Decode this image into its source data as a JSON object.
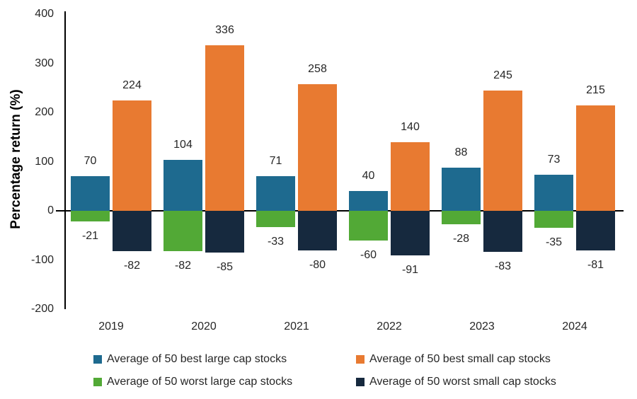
{
  "chart_data": {
    "type": "bar",
    "title": "",
    "xlabel": "",
    "ylabel": "Percentage return (%)",
    "categories": [
      "2019",
      "2020",
      "2021",
      "2022",
      "2023",
      "2024"
    ],
    "yticks": [
      400,
      300,
      200,
      100,
      0,
      -100,
      -200
    ],
    "ylim": [
      -200,
      400
    ],
    "grid": false,
    "legend_position": "bottom",
    "series": [
      {
        "name": "Average of 50 best large cap stocks",
        "color": "#1E6A8F",
        "column": "left",
        "values": [
          70,
          104,
          71,
          40,
          88,
          73
        ]
      },
      {
        "name": "Average of 50 best small cap stocks",
        "color": "#E87A31",
        "column": "right",
        "values": [
          224,
          336,
          258,
          140,
          245,
          215
        ]
      },
      {
        "name": "Average of 50 worst large cap stocks",
        "color": "#52A936",
        "column": "left",
        "values": [
          -21,
          -82,
          -33,
          -60,
          -28,
          -35
        ]
      },
      {
        "name": "Average of 50 worst small cap stocks",
        "color": "#16293E",
        "column": "right",
        "values": [
          -82,
          -85,
          -80,
          -91,
          -83,
          -81
        ]
      }
    ]
  }
}
